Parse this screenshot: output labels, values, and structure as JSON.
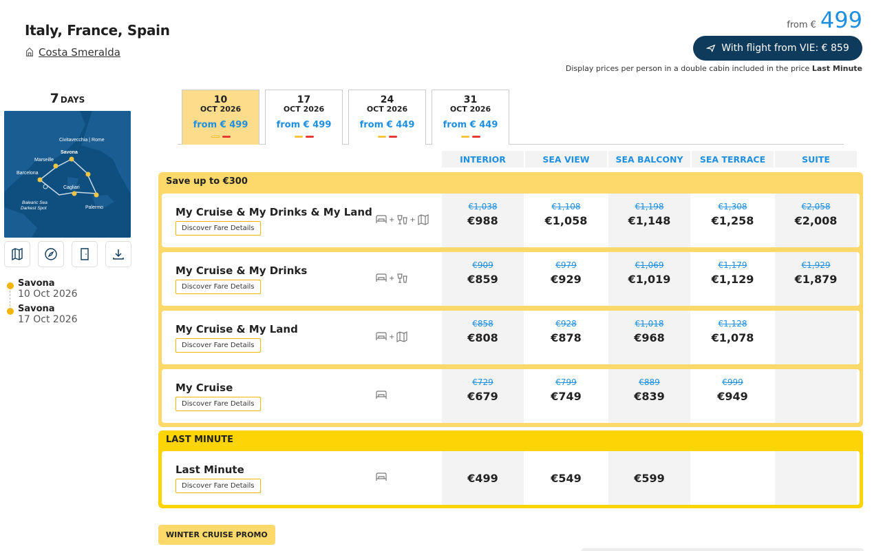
{
  "header": {
    "title": "Italy, France, Spain",
    "ship_name": "Costa Smeralda",
    "from_label": "from €",
    "from_price": "499",
    "flight_button": "With flight from VIE: € 859",
    "note_text": "Display prices per person in a double cabin included in the price",
    "note_bold": "Last Minute"
  },
  "sidebar": {
    "days_number": "7",
    "days_label": "DAYS",
    "map_labels": [
      "Civitavecchia | Rome",
      "Marseille",
      "Savona",
      "Barcelona",
      "Cagliari",
      "Balearic Sea",
      "Darkest Spot",
      "Palermo"
    ],
    "tools": [
      "map-icon",
      "compass-icon",
      "door-icon",
      "download-icon"
    ],
    "itinerary": [
      {
        "port": "Savona",
        "date": "10 Oct 2026"
      },
      {
        "port": "Savona",
        "date": "17 Oct 2026"
      }
    ]
  },
  "dates": [
    {
      "day": "10",
      "month": "OCT 2026",
      "from": "from € 499",
      "active": true
    },
    {
      "day": "17",
      "month": "OCT 2026",
      "from": "from € 499",
      "active": false
    },
    {
      "day": "24",
      "month": "OCT 2026",
      "from": "from € 449",
      "active": false
    },
    {
      "day": "31",
      "month": "OCT 2026",
      "from": "from € 449",
      "active": false
    }
  ],
  "columns": [
    "INTERIOR",
    "SEA VIEW",
    "SEA BALCONY",
    "SEA TERRACE",
    "SUITE"
  ],
  "groups": [
    {
      "title": "Save up to €300",
      "rows": [
        {
          "name": "My Cruise & My Drinks & My Land",
          "discover": "Discover Fare Details",
          "includes": [
            "bed-icon",
            "drinks-icon",
            "map-land-icon"
          ],
          "prices": [
            {
              "old": "€1,038",
              "new": "€988"
            },
            {
              "old": "€1,108",
              "new": "€1,058"
            },
            {
              "old": "€1,198",
              "new": "€1,148"
            },
            {
              "old": "€1,308",
              "new": "€1,258"
            },
            {
              "old": "€2,058",
              "new": "€2,008"
            }
          ]
        },
        {
          "name": "My Cruise & My Drinks",
          "discover": "Discover Fare Details",
          "includes": [
            "bed-icon",
            "drinks-icon"
          ],
          "prices": [
            {
              "old": "€909",
              "new": "€859"
            },
            {
              "old": "€979",
              "new": "€929"
            },
            {
              "old": "€1,069",
              "new": "€1,019"
            },
            {
              "old": "€1,179",
              "new": "€1,129"
            },
            {
              "old": "€1,929",
              "new": "€1,879"
            }
          ]
        },
        {
          "name": "My Cruise & My Land",
          "discover": "Discover Fare Details",
          "includes": [
            "bed-icon",
            "map-land-icon"
          ],
          "prices": [
            {
              "old": "€858",
              "new": "€808"
            },
            {
              "old": "€928",
              "new": "€878"
            },
            {
              "old": "€1,018",
              "new": "€968"
            },
            {
              "old": "€1,128",
              "new": "€1,078"
            },
            {
              "old": "",
              "new": ""
            }
          ]
        },
        {
          "name": "My Cruise",
          "discover": "Discover Fare Details",
          "includes": [
            "bed-icon"
          ],
          "prices": [
            {
              "old": "€729",
              "new": "€679"
            },
            {
              "old": "€799",
              "new": "€749"
            },
            {
              "old": "€889",
              "new": "€839"
            },
            {
              "old": "€999",
              "new": "€949"
            },
            {
              "old": "",
              "new": ""
            }
          ]
        }
      ]
    },
    {
      "title": "LAST MINUTE",
      "rows": [
        {
          "name": "Last Minute",
          "discover": "Discover Fare Details",
          "includes": [
            "bed-icon"
          ],
          "prices": [
            {
              "old": "",
              "new": "€499"
            },
            {
              "old": "",
              "new": "€549"
            },
            {
              "old": "",
              "new": "€599"
            },
            {
              "old": "",
              "new": ""
            },
            {
              "old": "",
              "new": ""
            }
          ]
        }
      ]
    }
  ],
  "promo": "WINTER CRUISE PROMO",
  "colors": {
    "accent_blue": "#1f8fe0",
    "navy": "#0e3a5c",
    "yellow": "#fcd96a",
    "last_minute_yellow": "#fdd406"
  }
}
